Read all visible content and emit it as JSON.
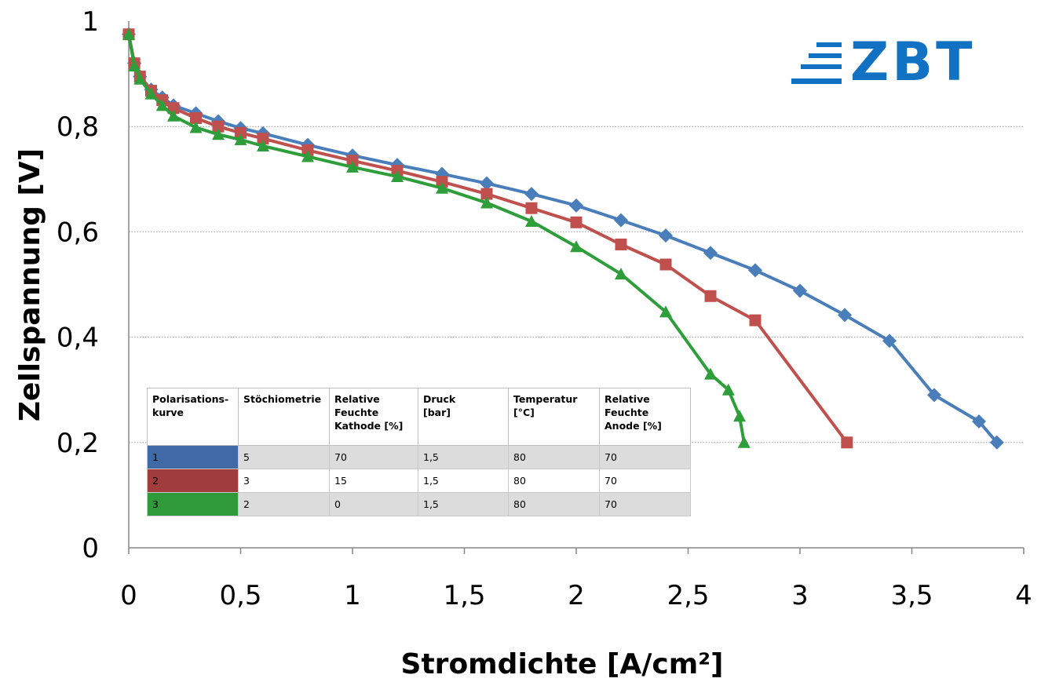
{
  "chart_data": {
    "type": "line",
    "xlabel": "Stromdichte [A/cm²]",
    "ylabel": "Zellspannung [V]",
    "xlim": [
      0,
      4
    ],
    "ylim": [
      0,
      1
    ],
    "x_ticks": [
      "0",
      "0,5",
      "1",
      "1,5",
      "2",
      "2,5",
      "3",
      "3,5",
      "4"
    ],
    "y_ticks": [
      "0",
      "0,2",
      "0,4",
      "0,6",
      "0,8",
      "1"
    ],
    "grid": "horizontal dotted",
    "series": [
      {
        "name": "1",
        "color": "#4a7ebb",
        "marker": "diamond",
        "x": [
          0,
          0.025,
          0.05,
          0.1,
          0.15,
          0.2,
          0.3,
          0.4,
          0.5,
          0.6,
          0.8,
          1.0,
          1.2,
          1.4,
          1.6,
          1.8,
          2.0,
          2.2,
          2.4,
          2.6,
          2.8,
          3.0,
          3.2,
          3.4,
          3.6,
          3.8,
          3.88
        ],
        "y": [
          0.975,
          0.92,
          0.895,
          0.87,
          0.855,
          0.84,
          0.825,
          0.81,
          0.797,
          0.787,
          0.765,
          0.745,
          0.727,
          0.71,
          0.692,
          0.672,
          0.65,
          0.622,
          0.593,
          0.56,
          0.527,
          0.488,
          0.442,
          0.393,
          0.29,
          0.24,
          0.2
        ]
      },
      {
        "name": "2",
        "color": "#c0504d",
        "marker": "square",
        "x": [
          0,
          0.025,
          0.05,
          0.1,
          0.15,
          0.2,
          0.3,
          0.4,
          0.5,
          0.6,
          0.8,
          1.0,
          1.2,
          1.4,
          1.6,
          1.8,
          2.0,
          2.2,
          2.4,
          2.6,
          2.8,
          3.21
        ],
        "y": [
          0.975,
          0.92,
          0.895,
          0.868,
          0.85,
          0.835,
          0.816,
          0.8,
          0.788,
          0.777,
          0.755,
          0.735,
          0.716,
          0.695,
          0.672,
          0.645,
          0.618,
          0.576,
          0.538,
          0.478,
          0.432,
          0.2
        ]
      },
      {
        "name": "3",
        "color": "#2e9e3a",
        "marker": "triangle",
        "x": [
          0,
          0.025,
          0.05,
          0.1,
          0.15,
          0.2,
          0.3,
          0.4,
          0.5,
          0.6,
          0.8,
          1.0,
          1.2,
          1.4,
          1.6,
          1.8,
          2.0,
          2.2,
          2.4,
          2.6,
          2.68,
          2.73,
          2.75
        ],
        "y": [
          0.975,
          0.915,
          0.89,
          0.862,
          0.84,
          0.82,
          0.798,
          0.785,
          0.775,
          0.763,
          0.743,
          0.723,
          0.705,
          0.683,
          0.655,
          0.62,
          0.572,
          0.52,
          0.448,
          0.33,
          0.3,
          0.25,
          0.2
        ]
      }
    ]
  },
  "logo": {
    "text": "ZBT",
    "color": "#1172c4"
  },
  "legend_table": {
    "headers": [
      "Polarisations-\nkurve",
      "Stöchiometrie",
      "Relative\nFeuchte\nKathode [%]",
      "Druck\n [bar]",
      "Temperatur\n[°C]",
      "Relative\nFeuchte\nAnode [%]"
    ],
    "rows": [
      {
        "curve": "1",
        "color": "#3f6aa6",
        "stoich": "5",
        "rh_cathode": "70",
        "pressure": "1,5",
        "temperature": "80",
        "rh_anode": "70"
      },
      {
        "curve": "2",
        "color": "#a03c3c",
        "stoich": "3",
        "rh_cathode": "15",
        "pressure": "1,5",
        "temperature": "80",
        "rh_anode": "70"
      },
      {
        "curve": "3",
        "color": "#2f9a3a",
        "stoich": "2",
        "rh_cathode": "0",
        "pressure": "1,5",
        "temperature": "80",
        "rh_anode": "70"
      }
    ]
  }
}
